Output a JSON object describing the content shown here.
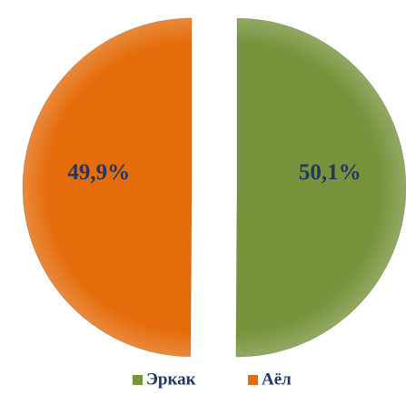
{
  "chart_data": {
    "type": "pie",
    "categories": [
      "Эркак",
      "Аёл"
    ],
    "values": [
      50.1,
      49.9
    ],
    "value_labels": [
      "50,1%",
      "49,9%"
    ],
    "colors": [
      "#77933c",
      "#e46c0a"
    ],
    "legend": "bottom"
  }
}
